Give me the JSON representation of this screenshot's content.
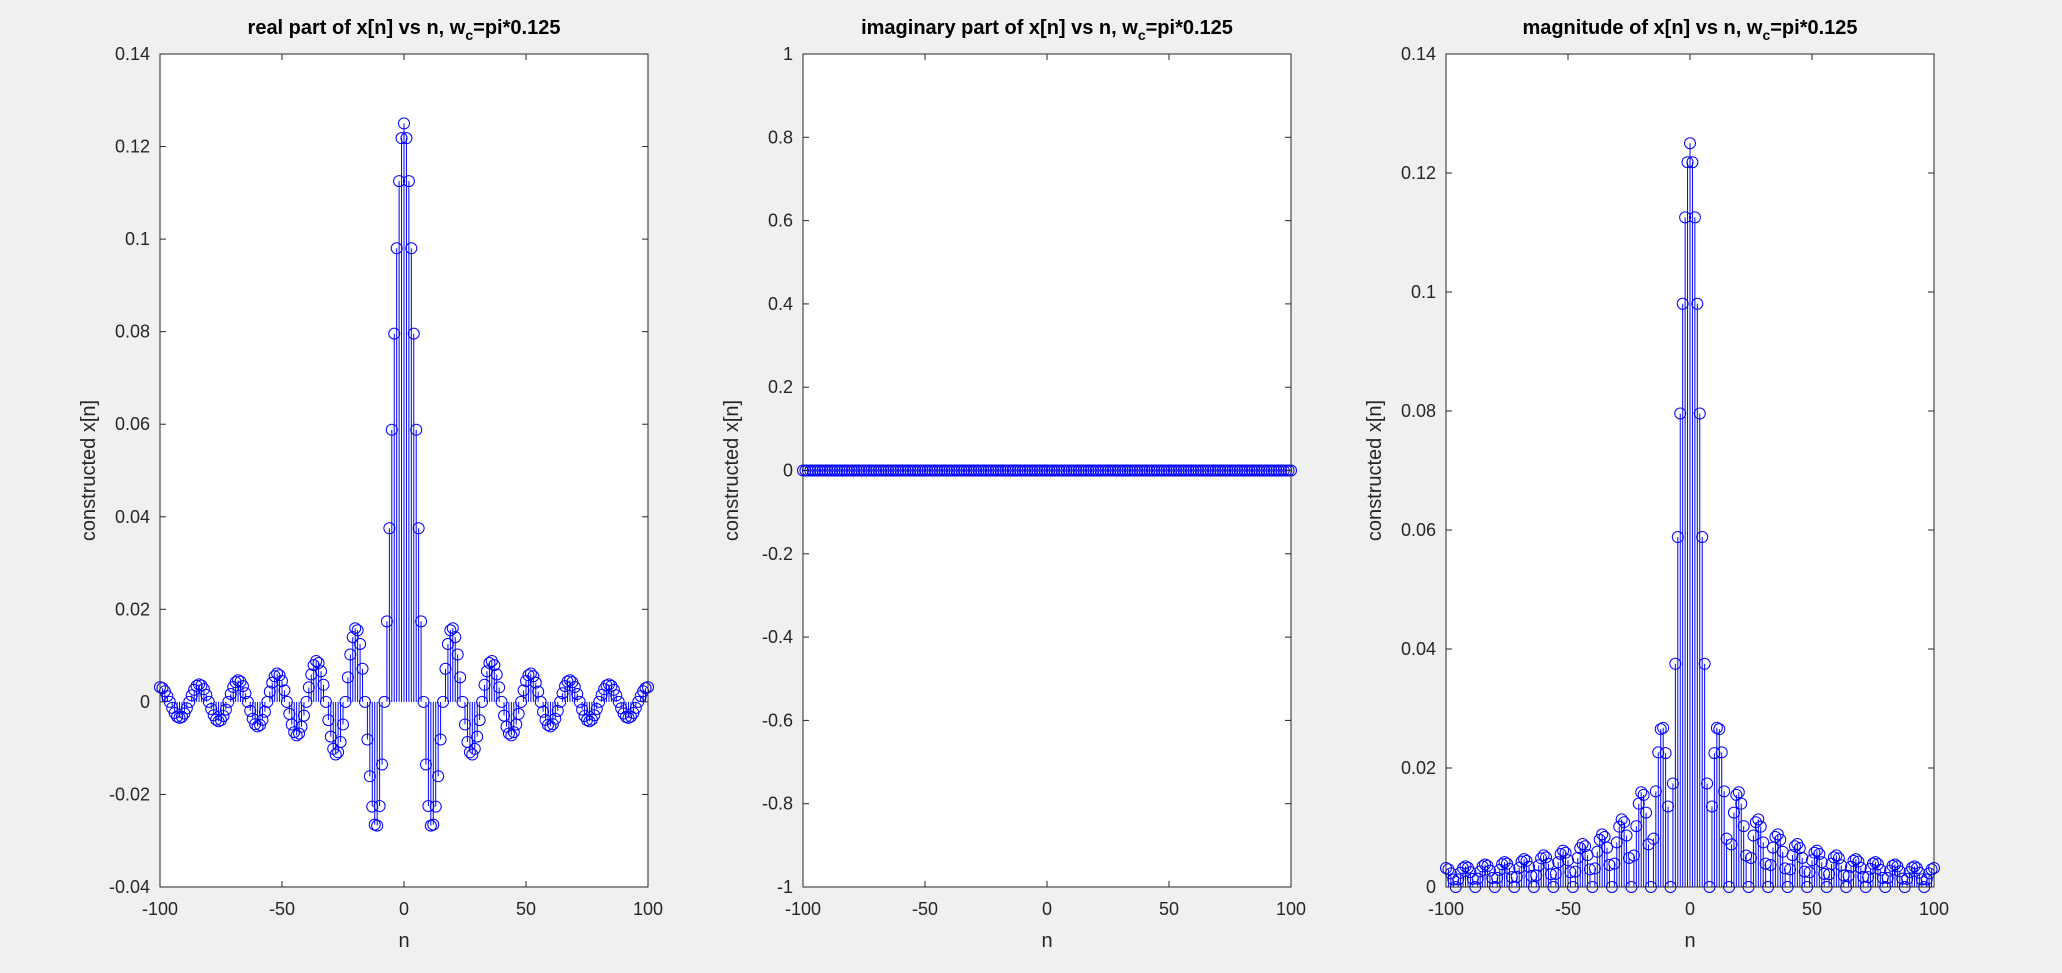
{
  "chart_data": [
    {
      "type": "stem",
      "title": "real part of x[n] vs n, w",
      "title_subscript": "c",
      "title_suffix": "=pi*0.125",
      "xlabel": "n",
      "ylabel": "constructed x[n]",
      "xlim": [
        -100,
        100
      ],
      "ylim": [
        -0.04,
        0.14
      ],
      "xticks": [
        -100,
        -50,
        0,
        50,
        100
      ],
      "xtick_labels": [
        "-100",
        "-50",
        "0",
        "50",
        "100"
      ],
      "yticks": [
        -0.04,
        -0.02,
        0,
        0.02,
        0.04,
        0.06,
        0.08,
        0.1,
        0.12,
        0.14
      ],
      "ytick_labels": [
        "-0.04",
        "-0.02",
        "0",
        "0.02",
        "0.04",
        "0.06",
        "0.08",
        "0.1",
        "0.12",
        "0.14"
      ],
      "series": [
        {
          "x_start": -100,
          "x_end": 100,
          "x_step": 1,
          "formula": "sin(pi*0.125*n)/(pi*n), 0.125 at n=0"
        }
      ],
      "marker": "circle",
      "color": "#0000ff"
    },
    {
      "type": "stem",
      "title": "imaginary part of x[n] vs n, w",
      "title_subscript": "c",
      "title_suffix": "=pi*0.125",
      "xlabel": "n",
      "ylabel": "constructed x[n]",
      "xlim": [
        -100,
        100
      ],
      "ylim": [
        -1,
        1
      ],
      "xticks": [
        -100,
        -50,
        0,
        50,
        100
      ],
      "xtick_labels": [
        "-100",
        "-50",
        "0",
        "50",
        "100"
      ],
      "yticks": [
        -1,
        -0.8,
        -0.6,
        -0.4,
        -0.2,
        0,
        0.2,
        0.4,
        0.6,
        0.8,
        1
      ],
      "ytick_labels": [
        "-1",
        "-0.8",
        "-0.6",
        "-0.4",
        "-0.2",
        "0",
        "0.2",
        "0.4",
        "0.6",
        "0.8",
        "1"
      ],
      "series": [
        {
          "x_start": -100,
          "x_end": 100,
          "x_step": 1,
          "formula": "0 for all n"
        }
      ],
      "marker": "circle",
      "color": "#0000ff"
    },
    {
      "type": "stem",
      "title": "magnitude of x[n] vs n, w",
      "title_subscript": "c",
      "title_suffix": "=pi*0.125",
      "xlabel": "n",
      "ylabel": "constructed x[n]",
      "xlim": [
        -100,
        100
      ],
      "ylim": [
        0,
        0.14
      ],
      "xticks": [
        -100,
        -50,
        0,
        50,
        100
      ],
      "xtick_labels": [
        "-100",
        "-50",
        "0",
        "50",
        "100"
      ],
      "yticks": [
        0,
        0.02,
        0.04,
        0.06,
        0.08,
        0.1,
        0.12,
        0.14
      ],
      "ytick_labels": [
        "0",
        "0.02",
        "0.04",
        "0.06",
        "0.08",
        "0.1",
        "0.12",
        "0.14"
      ],
      "series": [
        {
          "x_start": -100,
          "x_end": 100,
          "x_step": 1,
          "formula": "|sin(pi*0.125*n)/(pi*n)|, 0.125 at n=0"
        }
      ],
      "marker": "circle",
      "color": "#0000ff"
    }
  ]
}
